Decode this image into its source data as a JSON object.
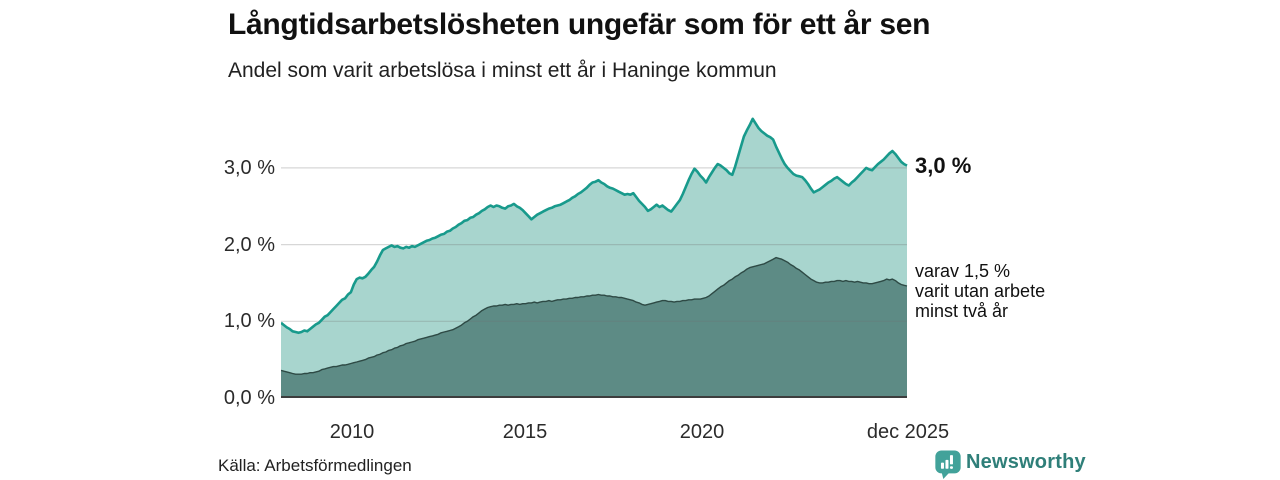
{
  "header": {
    "title": "Långtidsarbetslösheten ungefär som för ett år sen",
    "subtitle": "Andel som varit arbetslösa i minst ett år i Haninge kommun"
  },
  "axis": {
    "y_ticks": [
      "3,0 %",
      "2,0 %",
      "1,0 %",
      "0,0 %"
    ],
    "x_ticks": [
      "2010",
      "2015",
      "2020",
      "dec 2025"
    ]
  },
  "annotations": {
    "total_end": "3,0 %",
    "sub_end": "varav 1,5 %\nvarit utan arbete\nminst två år"
  },
  "footer": {
    "source": "Källa: Arbetsförmedlingen",
    "brand": "Newsworthy"
  },
  "colors": {
    "total_line": "#189a8c",
    "total_fill": "#a8d5ce",
    "sub_line": "#2e4a45",
    "sub_fill": "#5d8b85",
    "gridline": "#6f6f6f",
    "baseline": "#3d3d3d",
    "brand_teal": "#42a29a",
    "brand_text": "#2f7f79"
  },
  "chart_data": {
    "type": "area",
    "title": "Långtidsarbetslösheten ungefär som för ett år sen",
    "subtitle": "Andel som varit arbetslösa i minst ett år i Haninge kommun",
    "unit": "%",
    "frequency": "monthly",
    "x_start": "2008-01",
    "x_end": "2025-12",
    "ylim": [
      0,
      3.9
    ],
    "grid_values": [
      1,
      2,
      3
    ],
    "y_tick_values": [
      3,
      2,
      1,
      0
    ],
    "x_tick_month_index": [
      24,
      84,
      144,
      215
    ],
    "x_tick_labels": [
      "2010",
      "2015",
      "2020",
      "dec 2025"
    ],
    "legend_position": "end-of-line labels, right side",
    "series": [
      {
        "name": "Andel arbetslösa minst ett år",
        "end_label": "3,0 %",
        "end_value": 3.0,
        "values": [
          0.98,
          0.95,
          0.92,
          0.9,
          0.87,
          0.86,
          0.85,
          0.86,
          0.88,
          0.87,
          0.9,
          0.93,
          0.96,
          0.98,
          1.02,
          1.06,
          1.08,
          1.12,
          1.16,
          1.2,
          1.24,
          1.28,
          1.3,
          1.35,
          1.38,
          1.48,
          1.55,
          1.57,
          1.56,
          1.58,
          1.62,
          1.67,
          1.71,
          1.78,
          1.86,
          1.93,
          1.95,
          1.97,
          1.99,
          1.97,
          1.98,
          1.96,
          1.95,
          1.97,
          1.96,
          1.98,
          1.97,
          1.99,
          2.01,
          2.03,
          2.05,
          2.06,
          2.08,
          2.09,
          2.11,
          2.13,
          2.14,
          2.17,
          2.18,
          2.21,
          2.23,
          2.26,
          2.28,
          2.31,
          2.32,
          2.35,
          2.36,
          2.39,
          2.41,
          2.44,
          2.46,
          2.49,
          2.51,
          2.49,
          2.51,
          2.5,
          2.48,
          2.47,
          2.5,
          2.51,
          2.53,
          2.5,
          2.48,
          2.45,
          2.41,
          2.37,
          2.33,
          2.36,
          2.39,
          2.41,
          2.43,
          2.45,
          2.47,
          2.48,
          2.5,
          2.51,
          2.52,
          2.54,
          2.56,
          2.58,
          2.61,
          2.63,
          2.66,
          2.68,
          2.71,
          2.74,
          2.78,
          2.81,
          2.82,
          2.84,
          2.81,
          2.79,
          2.76,
          2.74,
          2.73,
          2.71,
          2.69,
          2.67,
          2.65,
          2.66,
          2.65,
          2.67,
          2.62,
          2.57,
          2.53,
          2.49,
          2.44,
          2.46,
          2.49,
          2.52,
          2.49,
          2.51,
          2.48,
          2.45,
          2.43,
          2.48,
          2.53,
          2.58,
          2.66,
          2.75,
          2.84,
          2.92,
          2.99,
          2.95,
          2.9,
          2.86,
          2.81,
          2.88,
          2.94,
          3.0,
          3.05,
          3.03,
          3.0,
          2.97,
          2.93,
          2.91,
          3.02,
          3.15,
          3.28,
          3.41,
          3.49,
          3.56,
          3.64,
          3.58,
          3.52,
          3.48,
          3.45,
          3.42,
          3.4,
          3.37,
          3.28,
          3.2,
          3.12,
          3.05,
          3.0,
          2.96,
          2.92,
          2.9,
          2.89,
          2.88,
          2.84,
          2.79,
          2.73,
          2.68,
          2.7,
          2.72,
          2.75,
          2.78,
          2.81,
          2.83,
          2.86,
          2.88,
          2.85,
          2.82,
          2.79,
          2.77,
          2.81,
          2.84,
          2.88,
          2.92,
          2.96,
          3.0,
          2.98,
          2.97,
          3.01,
          3.05,
          3.08,
          3.11,
          3.15,
          3.19,
          3.22,
          3.18,
          3.13,
          3.08,
          3.05,
          3.03
        ]
      },
      {
        "name": "varav utan arbete minst två år",
        "end_label": "varav 1,5 % varit utan arbete minst två år",
        "end_value": 1.5,
        "values": [
          0.36,
          0.35,
          0.34,
          0.33,
          0.32,
          0.31,
          0.31,
          0.31,
          0.32,
          0.32,
          0.33,
          0.33,
          0.34,
          0.35,
          0.37,
          0.38,
          0.39,
          0.4,
          0.41,
          0.41,
          0.42,
          0.43,
          0.43,
          0.44,
          0.45,
          0.46,
          0.47,
          0.48,
          0.49,
          0.5,
          0.52,
          0.53,
          0.54,
          0.56,
          0.57,
          0.59,
          0.6,
          0.62,
          0.63,
          0.65,
          0.66,
          0.68,
          0.69,
          0.71,
          0.72,
          0.73,
          0.74,
          0.76,
          0.77,
          0.78,
          0.79,
          0.8,
          0.81,
          0.82,
          0.83,
          0.85,
          0.86,
          0.87,
          0.88,
          0.89,
          0.91,
          0.93,
          0.95,
          0.98,
          1.0,
          1.03,
          1.06,
          1.08,
          1.11,
          1.14,
          1.16,
          1.18,
          1.19,
          1.2,
          1.2,
          1.21,
          1.21,
          1.22,
          1.21,
          1.22,
          1.22,
          1.23,
          1.22,
          1.23,
          1.23,
          1.24,
          1.24,
          1.25,
          1.24,
          1.25,
          1.26,
          1.26,
          1.27,
          1.26,
          1.27,
          1.28,
          1.28,
          1.29,
          1.29,
          1.3,
          1.3,
          1.31,
          1.31,
          1.32,
          1.32,
          1.33,
          1.33,
          1.34,
          1.34,
          1.35,
          1.34,
          1.34,
          1.33,
          1.33,
          1.32,
          1.32,
          1.31,
          1.31,
          1.3,
          1.29,
          1.28,
          1.27,
          1.25,
          1.24,
          1.22,
          1.21,
          1.22,
          1.23,
          1.24,
          1.25,
          1.26,
          1.27,
          1.27,
          1.26,
          1.26,
          1.25,
          1.26,
          1.26,
          1.27,
          1.27,
          1.28,
          1.28,
          1.29,
          1.29,
          1.29,
          1.3,
          1.31,
          1.33,
          1.36,
          1.39,
          1.42,
          1.45,
          1.47,
          1.5,
          1.53,
          1.55,
          1.58,
          1.6,
          1.63,
          1.65,
          1.68,
          1.7,
          1.71,
          1.72,
          1.73,
          1.74,
          1.75,
          1.77,
          1.79,
          1.81,
          1.83,
          1.82,
          1.81,
          1.79,
          1.77,
          1.74,
          1.72,
          1.69,
          1.67,
          1.64,
          1.61,
          1.58,
          1.55,
          1.53,
          1.51,
          1.5,
          1.5,
          1.51,
          1.51,
          1.52,
          1.52,
          1.53,
          1.53,
          1.52,
          1.53,
          1.52,
          1.52,
          1.51,
          1.52,
          1.51,
          1.5,
          1.5,
          1.49,
          1.49,
          1.5,
          1.51,
          1.52,
          1.53,
          1.55,
          1.54,
          1.55,
          1.53,
          1.5,
          1.48,
          1.47,
          1.46
        ]
      }
    ],
    "source": "Källa: Arbetsförmedlingen"
  }
}
